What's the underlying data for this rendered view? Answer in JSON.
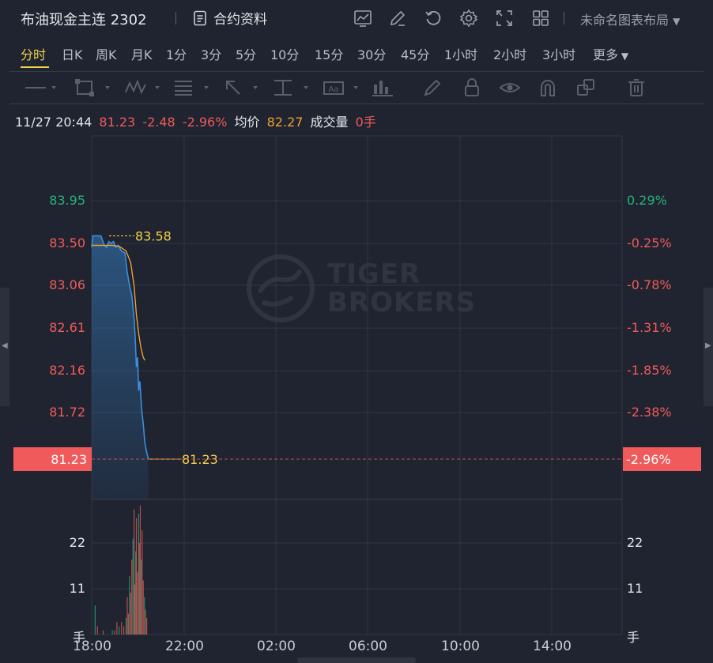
{
  "header": {
    "title": "布油现金主连 2302",
    "contract_info_label": "合约资料",
    "layout_label": "未命名图表布局",
    "icons": [
      "indicator-icon",
      "draw-icon",
      "refresh-icon",
      "settings-icon",
      "fullscreen-icon",
      "grid-layout-icon"
    ]
  },
  "periods": {
    "active": "分时",
    "items": [
      "分时",
      "日K",
      "周K",
      "月K",
      "1分",
      "3分",
      "5分",
      "10分",
      "15分",
      "30分",
      "45分",
      "1小时",
      "2小时",
      "3小时",
      "更多"
    ]
  },
  "drawing_tools": [
    "line-tool-icon",
    "rectangle-tool-icon",
    "pattern-tool-icon",
    "fib-tool-icon",
    "arrow-tool-icon",
    "measure-tool-icon",
    "text-tool-icon",
    "indicator-bar-icon",
    "brush-icon",
    "lock-icon",
    "eye-icon",
    "magnet-icon",
    "clone-icon",
    "trash-icon"
  ],
  "info": {
    "datetime": "11/27 20:44",
    "price": "81.23",
    "change": "-2.48",
    "change_pct": "-2.96%",
    "avg_label": "均价",
    "avg_value": "82.27",
    "volume_label": "成交量",
    "volume_value": "0手"
  },
  "watermark": {
    "line1": "TIGER",
    "line2": "BROKERS"
  },
  "colors": {
    "background": "#1f2430",
    "up": "#26b07a",
    "down": "#f05a5a",
    "price_line": "#3a8fe0",
    "avg_line": "#f0a030",
    "highlight": "#f2d14a",
    "grid": "#303644"
  },
  "chart_data": {
    "type": "line",
    "price_axis": {
      "labels": [
        "83.95",
        "83.50",
        "83.06",
        "82.61",
        "82.16",
        "81.72",
        "81.23"
      ],
      "values": [
        83.95,
        83.5,
        83.06,
        82.61,
        82.16,
        81.72,
        81.23
      ],
      "pct_labels": [
        "0.29%",
        "-0.25%",
        "-0.78%",
        "-1.31%",
        "-1.85%",
        "-2.38%",
        "-2.96%"
      ],
      "range": [
        81.1,
        84.4
      ]
    },
    "current_price": "81.23",
    "current_pct": "-2.96%",
    "high_label": "83.58",
    "low_label": "81.23",
    "x_ticks": [
      "18:00",
      "22:00",
      "02:00",
      "06:00",
      "10:00",
      "14:00"
    ],
    "price_series": [
      [
        18.0,
        83.46
      ],
      [
        18.05,
        83.58
      ],
      [
        18.2,
        83.58
      ],
      [
        18.4,
        83.58
      ],
      [
        18.55,
        83.48
      ],
      [
        18.65,
        83.46
      ],
      [
        18.75,
        83.52
      ],
      [
        18.85,
        83.5
      ],
      [
        18.95,
        83.52
      ],
      [
        19.05,
        83.46
      ],
      [
        19.15,
        83.48
      ],
      [
        19.3,
        83.42
      ],
      [
        19.45,
        83.4
      ],
      [
        19.55,
        83.2
      ],
      [
        19.65,
        83.06
      ],
      [
        19.75,
        82.95
      ],
      [
        19.85,
        82.7
      ],
      [
        19.9,
        82.5
      ],
      [
        19.95,
        82.2
      ],
      [
        20.0,
        82.3
      ],
      [
        20.05,
        81.95
      ],
      [
        20.1,
        82.05
      ],
      [
        20.18,
        81.75
      ],
      [
        20.25,
        81.6
      ],
      [
        20.32,
        81.4
      ],
      [
        20.4,
        81.3
      ],
      [
        20.47,
        81.23
      ]
    ],
    "avg_series": [
      [
        18.0,
        83.48
      ],
      [
        18.3,
        83.48
      ],
      [
        18.6,
        83.48
      ],
      [
        18.9,
        83.48
      ],
      [
        19.2,
        83.47
      ],
      [
        19.5,
        83.42
      ],
      [
        19.7,
        83.3
      ],
      [
        19.85,
        83.05
      ],
      [
        19.95,
        82.75
      ],
      [
        20.05,
        82.55
      ],
      [
        20.15,
        82.4
      ],
      [
        20.25,
        82.3
      ],
      [
        20.32,
        82.27
      ]
    ],
    "volume_axis": {
      "labels": [
        "22",
        "11",
        "手"
      ],
      "values": [
        22,
        11,
        0
      ],
      "range": [
        0,
        30
      ]
    },
    "volume_series": [
      [
        18.15,
        7
      ],
      [
        18.25,
        2
      ],
      [
        18.5,
        1
      ],
      [
        18.9,
        1
      ],
      [
        19.0,
        1
      ],
      [
        19.1,
        3
      ],
      [
        19.2,
        2
      ],
      [
        19.3,
        3
      ],
      [
        19.4,
        2
      ],
      [
        19.5,
        4
      ],
      [
        19.55,
        9
      ],
      [
        19.6,
        5
      ],
      [
        19.65,
        14
      ],
      [
        19.7,
        10
      ],
      [
        19.75,
        18
      ],
      [
        19.8,
        23
      ],
      [
        19.85,
        30
      ],
      [
        19.88,
        12
      ],
      [
        19.92,
        20
      ],
      [
        19.95,
        28
      ],
      [
        20.0,
        15
      ],
      [
        20.05,
        29
      ],
      [
        20.08,
        22
      ],
      [
        20.12,
        31
      ],
      [
        20.16,
        18
      ],
      [
        20.2,
        25
      ],
      [
        20.25,
        13
      ],
      [
        20.3,
        9
      ],
      [
        20.35,
        6
      ],
      [
        20.4,
        4
      ]
    ]
  }
}
